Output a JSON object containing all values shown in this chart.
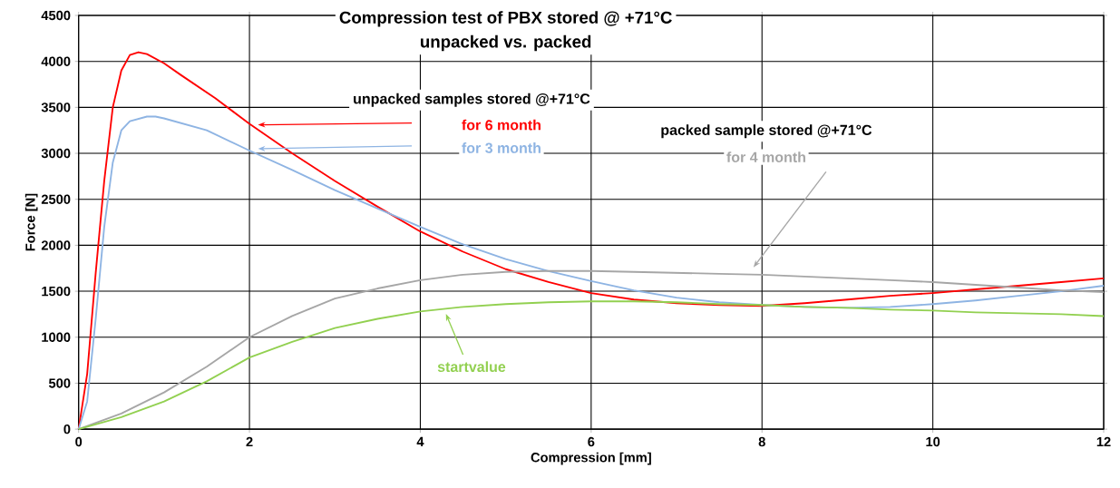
{
  "chart_data": {
    "type": "line",
    "title": "Compression test of PBX stored @ +71°C",
    "subtitle": "unpacked  vs.  packed",
    "xlabel": "Compression  [mm]",
    "ylabel": "Force [N]",
    "annotations": [
      "unpacked samples stored @+71°C",
      "packed sample stored @+71°C"
    ],
    "xlim": [
      0,
      12
    ],
    "xticks": [
      0,
      2,
      4,
      6,
      8,
      10,
      12
    ],
    "ylim": [
      0,
      4500
    ],
    "yticks": [
      0,
      500,
      1000,
      1500,
      2000,
      2500,
      3000,
      3500,
      4000,
      4500
    ],
    "grid": true,
    "legend": false,
    "marker": "none",
    "line_style": "solid",
    "series": [
      {
        "name": "for 6 month",
        "color": "#ff0000",
        "x": [
          0,
          0.1,
          0.2,
          0.3,
          0.4,
          0.5,
          0.6,
          0.7,
          0.8,
          1.0,
          1.2,
          1.6,
          2.0,
          2.5,
          3.0,
          3.5,
          4,
          4.5,
          5,
          5.5,
          6,
          6.5,
          7,
          7.5,
          8,
          8.5,
          9,
          9.5,
          10,
          10.5,
          11,
          11.5,
          12
        ],
        "values": [
          0,
          600,
          1700,
          2700,
          3500,
          3900,
          4070,
          4100,
          4080,
          3980,
          3850,
          3600,
          3320,
          3000,
          2700,
          2420,
          2150,
          1930,
          1740,
          1600,
          1480,
          1410,
          1370,
          1350,
          1340,
          1370,
          1410,
          1450,
          1480,
          1520,
          1560,
          1600,
          1640
        ]
      },
      {
        "name": "for 3 month",
        "color": "#8eb4e3",
        "x": [
          0,
          0.1,
          0.2,
          0.3,
          0.4,
          0.5,
          0.6,
          0.8,
          0.9,
          1.0,
          1.5,
          2,
          2.5,
          3,
          3.5,
          4,
          4.5,
          5,
          5.5,
          6,
          6.5,
          7,
          7.5,
          8,
          8.5,
          9,
          9.5,
          10,
          10.5,
          11,
          11.5,
          12
        ],
        "values": [
          0,
          300,
          1200,
          2200,
          2900,
          3250,
          3350,
          3400,
          3400,
          3380,
          3250,
          3030,
          2820,
          2600,
          2400,
          2200,
          2010,
          1850,
          1720,
          1610,
          1510,
          1430,
          1380,
          1350,
          1330,
          1320,
          1330,
          1360,
          1400,
          1450,
          1500,
          1560
        ]
      },
      {
        "name": "for 4 month",
        "color": "#a6a6a6",
        "x": [
          0,
          0.5,
          1,
          1.5,
          2,
          2.5,
          3,
          3.5,
          4,
          4.5,
          5,
          5.5,
          6,
          6.5,
          7,
          7.5,
          8,
          8.5,
          9,
          9.5,
          10,
          10.5,
          11,
          11.5,
          12
        ],
        "values": [
          0,
          170,
          400,
          680,
          1000,
          1230,
          1420,
          1530,
          1620,
          1680,
          1710,
          1720,
          1720,
          1710,
          1700,
          1690,
          1680,
          1660,
          1640,
          1620,
          1600,
          1570,
          1540,
          1510,
          1490
        ]
      },
      {
        "name": "startvalue",
        "color": "#92d050",
        "x": [
          0,
          0.5,
          1,
          1.5,
          2,
          2.5,
          3,
          3.5,
          4,
          4.5,
          5,
          5.5,
          6,
          6.5,
          7,
          7.5,
          8,
          8.5,
          9,
          9.5,
          10,
          10.5,
          11,
          11.5,
          12
        ],
        "values": [
          0,
          130,
          300,
          520,
          780,
          950,
          1100,
          1200,
          1280,
          1330,
          1360,
          1380,
          1390,
          1390,
          1380,
          1360,
          1350,
          1330,
          1320,
          1300,
          1290,
          1270,
          1260,
          1250,
          1230
        ]
      }
    ]
  }
}
